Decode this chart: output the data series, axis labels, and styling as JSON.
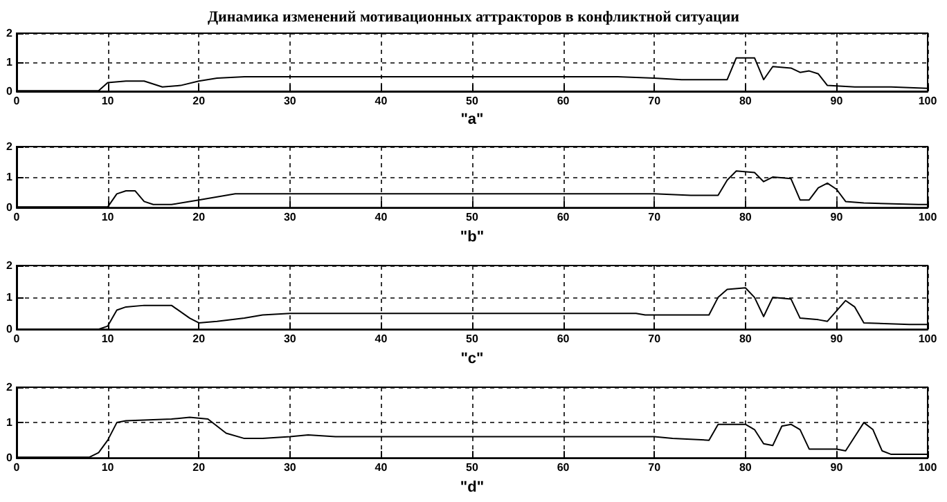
{
  "chart_data": [
    {
      "type": "line",
      "title": "Динамика изменений мотивационных аттракторов в конфликтной ситуации",
      "xlabel": "\"a\"",
      "xlim": [
        0,
        100
      ],
      "xticks": [
        0,
        10,
        20,
        30,
        40,
        50,
        60,
        70,
        80,
        90,
        100
      ],
      "ylim": [
        0,
        2
      ],
      "yticks": [
        0,
        1,
        2
      ],
      "grid": true,
      "marker": "none",
      "line_style": "solid",
      "series": [
        {
          "color": "#000000",
          "x": [
            0,
            9,
            10,
            12,
            14,
            16,
            18,
            20,
            22,
            25,
            30,
            66,
            70,
            73,
            78,
            79,
            81,
            82,
            83,
            85,
            86,
            87,
            88,
            89,
            92,
            96,
            100
          ],
          "values": [
            0.02,
            0.02,
            0.3,
            0.35,
            0.35,
            0.15,
            0.2,
            0.35,
            0.45,
            0.5,
            0.5,
            0.5,
            0.45,
            0.4,
            0.4,
            1.15,
            1.15,
            0.4,
            0.85,
            0.8,
            0.65,
            0.7,
            0.6,
            0.2,
            0.15,
            0.15,
            0.1
          ]
        }
      ]
    },
    {
      "type": "line",
      "xlabel": "\"b\"",
      "xlim": [
        0,
        100
      ],
      "xticks": [
        0,
        10,
        20,
        30,
        40,
        50,
        60,
        70,
        80,
        90,
        100
      ],
      "ylim": [
        0,
        2
      ],
      "yticks": [
        0,
        1,
        2
      ],
      "grid": true,
      "marker": "none",
      "line_style": "solid",
      "series": [
        {
          "color": "#000000",
          "x": [
            0,
            10,
            11,
            12,
            13,
            14,
            15,
            17,
            20,
            24,
            70,
            74,
            77,
            78,
            79,
            81,
            82,
            83,
            85,
            86,
            87,
            88,
            89,
            90,
            91,
            93,
            99,
            100
          ],
          "values": [
            0.02,
            0.02,
            0.45,
            0.55,
            0.55,
            0.2,
            0.1,
            0.1,
            0.25,
            0.45,
            0.45,
            0.4,
            0.4,
            0.9,
            1.2,
            1.15,
            0.85,
            1.0,
            0.95,
            0.25,
            0.25,
            0.65,
            0.8,
            0.6,
            0.2,
            0.15,
            0.1,
            0.1
          ]
        }
      ]
    },
    {
      "type": "line",
      "xlabel": "\"c\"",
      "xlim": [
        0,
        100
      ],
      "xticks": [
        0,
        10,
        20,
        30,
        40,
        50,
        60,
        70,
        80,
        90,
        100
      ],
      "ylim": [
        0,
        2
      ],
      "yticks": [
        0,
        1,
        2
      ],
      "grid": true,
      "marker": "none",
      "line_style": "solid",
      "series": [
        {
          "color": "#000000",
          "x": [
            0,
            9,
            10,
            11,
            12,
            14,
            17,
            19,
            20,
            22,
            25,
            27,
            30,
            68,
            69,
            76,
            77,
            78,
            80,
            81,
            82,
            83,
            85,
            86,
            88,
            89,
            91,
            92,
            93,
            98,
            100
          ],
          "values": [
            0,
            0,
            0.1,
            0.6,
            0.7,
            0.75,
            0.75,
            0.35,
            0.2,
            0.25,
            0.35,
            0.45,
            0.5,
            0.5,
            0.45,
            0.45,
            1.0,
            1.25,
            1.3,
            1.0,
            0.4,
            1.0,
            0.95,
            0.35,
            0.3,
            0.25,
            0.9,
            0.7,
            0.2,
            0.15,
            0.15
          ]
        }
      ]
    },
    {
      "type": "line",
      "xlabel": "\"d\"",
      "xlim": [
        0,
        100
      ],
      "xticks": [
        0,
        10,
        20,
        30,
        40,
        50,
        60,
        70,
        80,
        90,
        100
      ],
      "ylim": [
        0,
        2
      ],
      "yticks": [
        0,
        1,
        2
      ],
      "grid": true,
      "marker": "none",
      "line_style": "solid",
      "series": [
        {
          "color": "#000000",
          "x": [
            0,
            8,
            9,
            10,
            11,
            12,
            17,
            19,
            21,
            23,
            25,
            27,
            30,
            32,
            35,
            70,
            72,
            76,
            77,
            80,
            81,
            82,
            83,
            84,
            85,
            86,
            87,
            90,
            91,
            92,
            93,
            94,
            95,
            96,
            100
          ],
          "values": [
            0.02,
            0.02,
            0.15,
            0.5,
            1.0,
            1.05,
            1.1,
            1.15,
            1.1,
            0.7,
            0.55,
            0.55,
            0.6,
            0.65,
            0.6,
            0.6,
            0.55,
            0.5,
            0.95,
            0.95,
            0.8,
            0.4,
            0.35,
            0.9,
            0.95,
            0.8,
            0.25,
            0.25,
            0.2,
            0.6,
            1.0,
            0.8,
            0.2,
            0.1,
            0.1
          ]
        }
      ]
    }
  ]
}
